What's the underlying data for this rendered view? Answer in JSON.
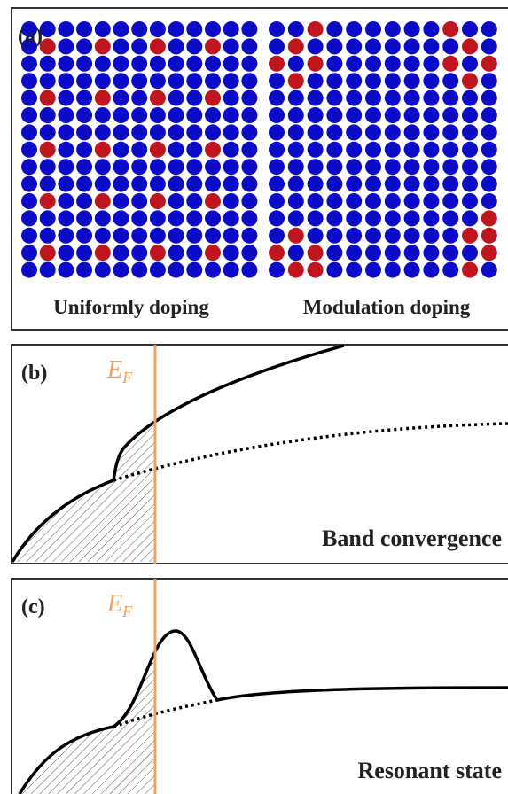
{
  "panel_a": {
    "label": "(a)",
    "left_caption": "Uniformly doping",
    "right_caption": "Modulation doping"
  },
  "panel_b": {
    "label": "(b)",
    "fermi": {
      "main": "E",
      "sub": "F"
    },
    "caption": "Band convergence"
  },
  "panel_c": {
    "label": "(c)",
    "fermi": {
      "main": "E",
      "sub": "F"
    },
    "caption": "Resonant state"
  }
}
